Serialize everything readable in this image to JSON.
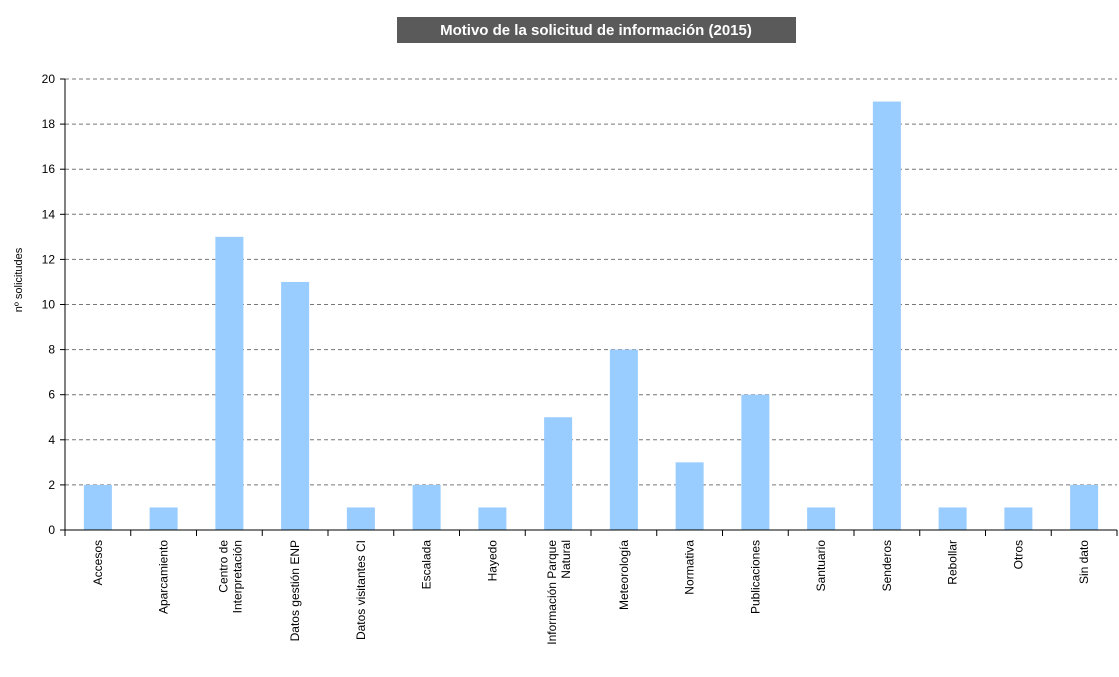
{
  "chart_data": {
    "type": "bar",
    "title": "Motivo de la solicitud de información (2015)",
    "y_label": "nº solicitudes",
    "categories": [
      "Accesos",
      "Aparcamiento",
      "Centro de Interpretación",
      "Datos gestión ENP",
      "Datos visitantes CI",
      "Escalada",
      "Hayedo",
      "Información Parque Natural",
      "Meteorología",
      "Normativa",
      "Publicaciones",
      "Santuario",
      "Senderos",
      "Rebollar",
      "Otros",
      "Sin dato"
    ],
    "values": [
      2,
      1,
      13,
      11,
      1,
      2,
      1,
      5,
      8,
      3,
      6,
      1,
      19,
      1,
      1,
      2
    ],
    "color": "#99ccff",
    "ylim": [
      0,
      20
    ],
    "yticks": [
      0,
      2,
      4,
      6,
      8,
      10,
      12,
      14,
      16,
      18,
      20
    ],
    "grid": true
  }
}
